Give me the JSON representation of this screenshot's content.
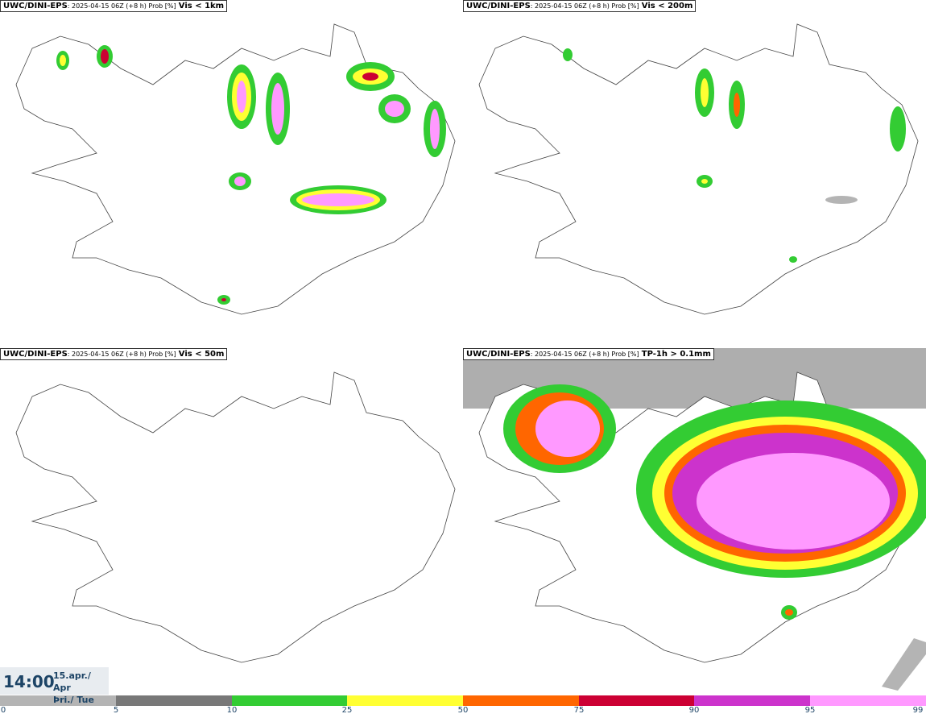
{
  "panels": [
    {
      "model": "UWC/DINI-EPS",
      "meta": ": 2025-04-15 06Z (+8 h) Prob [%]",
      "param": "Vis < 1km"
    },
    {
      "model": "UWC/DINI-EPS",
      "meta": ": 2025-04-15 06Z (+8 h) Prob [%]",
      "param": "Vis < 200m"
    },
    {
      "model": "UWC/DINI-EPS",
      "meta": ": 2025-04-15 06Z (+8 h) Prob [%]",
      "param": "Vis < 50m"
    },
    {
      "model": "UWC/DINI-EPS",
      "meta": ": 2025-04-15 06Z (+8 h) Prob [%]",
      "param": "TP-1h > 0.1mm"
    }
  ],
  "valid_time": {
    "hour": "14:00",
    "date_line1": "15.apr./ Apr",
    "date_line2": "Þri./ Tue"
  },
  "legend": {
    "ticks": [
      "0",
      "5",
      "10",
      "25",
      "50",
      "75",
      "90",
      "95",
      "99"
    ],
    "colors": [
      "#ffffff",
      "#b4b4b4",
      "#787878",
      "#33cc33",
      "#ffff33",
      "#ff6600",
      "#cc0033",
      "#cc33cc",
      "#ff99ff"
    ]
  }
}
